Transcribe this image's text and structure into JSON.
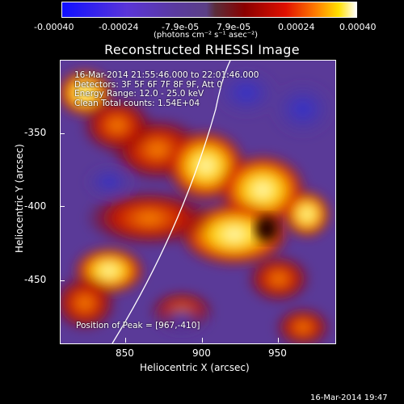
{
  "colorbar": {
    "ticks": [
      "-0.00040",
      "-0.00024",
      "-7.9e-05",
      "7.9e-05",
      "0.00024",
      "0.00040"
    ],
    "units": "(photons cm⁻² s⁻¹ asec⁻²)"
  },
  "plot": {
    "title": "Reconstructed RHESSI Image",
    "annotations": [
      "16-Mar-2014 21:55:46.000 to 22:01:46.000",
      "Detectors: 3F 5F 6F 7F 8F 9F, Att 0",
      "Energy Range: 12.0 - 25.0 keV",
      "Clean    Total counts: 1.54E+04"
    ],
    "peak_label": "Position of Peak = [967,-410]",
    "y_label": "Heliocentric Y (arcsec)",
    "x_label": "Heliocentric X (arcsec)",
    "y_ticks": [
      "-350",
      "-400",
      "-450"
    ],
    "x_ticks": [
      "850",
      "900",
      "950"
    ]
  },
  "footer": {
    "date": "16-Mar-2014 19:47"
  },
  "colors": {
    "background": "#000000",
    "limb": "#ffffff",
    "peak": "#ffffff",
    "emission_low": "#5a3aa0",
    "emission_high": "#ffe000"
  }
}
